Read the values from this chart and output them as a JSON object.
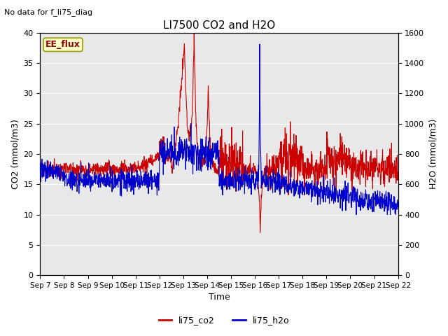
{
  "title": "LI7500 CO2 and H2O",
  "top_left_text": "No data for f_li75_diag",
  "xlabel": "Time",
  "ylabel_left": "CO2 (mmol/m3)",
  "ylabel_right": "H2O (mmol/m3)",
  "annotation_box": "EE_flux",
  "ylim_left": [
    0,
    40
  ],
  "ylim_right": [
    0,
    1600
  ],
  "yticks_left": [
    0,
    5,
    10,
    15,
    20,
    25,
    30,
    35,
    40
  ],
  "yticks_right": [
    0,
    200,
    400,
    600,
    800,
    1000,
    1200,
    1400,
    1600
  ],
  "xtick_labels": [
    "Sep 7",
    "Sep 8",
    "Sep 9",
    "Sep 10",
    "Sep 11",
    "Sep 12",
    "Sep 13",
    "Sep 14",
    "Sep 15",
    "Sep 16",
    "Sep 17",
    "Sep 18",
    "Sep 19",
    "Sep 20",
    "Sep 21",
    "Sep 22"
  ],
  "legend_labels": [
    "li75_co2",
    "li75_h2o"
  ],
  "legend_colors": [
    "#cc0000",
    "#0000cc"
  ],
  "line_color_co2": "#cc0000",
  "line_color_h2o": "#0000cc",
  "background_color": "#e8e8e8",
  "title_fontsize": 11,
  "label_fontsize": 9,
  "tick_fontsize": 8,
  "annotation_fontsize": 9
}
